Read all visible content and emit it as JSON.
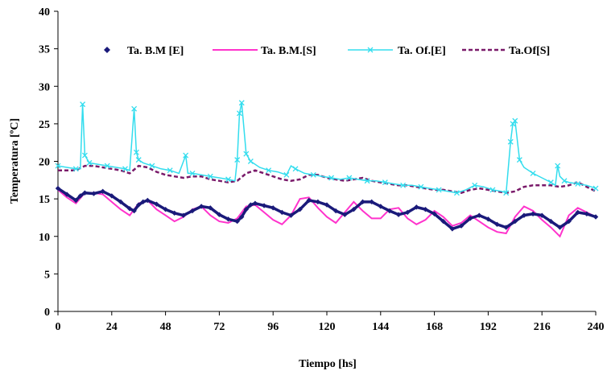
{
  "chart_data": {
    "type": "line",
    "title": "",
    "xlabel": "Tiempo [hs]",
    "ylabel": "Temperatura [ºC]",
    "xlim": [
      0,
      240
    ],
    "ylim": [
      0,
      40
    ],
    "xticks": [
      0,
      24,
      48,
      72,
      96,
      120,
      144,
      168,
      192,
      216,
      240
    ],
    "yticks": [
      0,
      5,
      10,
      15,
      20,
      25,
      30,
      35,
      40
    ],
    "grid": false,
    "legend_position": "top",
    "series": [
      {
        "name": "Ta. B.M [E]",
        "style": "diamond-markers",
        "color": "#1a1a7a",
        "x": [
          0,
          4,
          8,
          10,
          12,
          16,
          20,
          24,
          28,
          32,
          34,
          36,
          38,
          40,
          44,
          48,
          52,
          56,
          60,
          64,
          68,
          72,
          76,
          80,
          82,
          84,
          86,
          88,
          92,
          96,
          100,
          104,
          108,
          112,
          116,
          120,
          124,
          128,
          132,
          136,
          140,
          144,
          148,
          152,
          156,
          160,
          164,
          168,
          172,
          176,
          180,
          184,
          188,
          192,
          196,
          200,
          204,
          208,
          212,
          216,
          220,
          224,
          228,
          232,
          236,
          240
        ],
        "y": [
          16.4,
          15.6,
          14.8,
          15.4,
          15.8,
          15.7,
          16.0,
          15.4,
          14.6,
          13.7,
          13.4,
          14.2,
          14.6,
          14.8,
          14.3,
          13.6,
          13.1,
          12.8,
          13.4,
          14.0,
          13.8,
          12.9,
          12.3,
          12.0,
          12.6,
          13.6,
          14.2,
          14.4,
          14.1,
          13.8,
          13.2,
          12.8,
          13.6,
          14.8,
          14.6,
          14.2,
          13.4,
          12.9,
          13.6,
          14.6,
          14.6,
          14.0,
          13.4,
          12.9,
          13.2,
          13.9,
          13.6,
          13.0,
          12.0,
          11.0,
          11.4,
          12.4,
          12.8,
          12.3,
          11.6,
          11.2,
          12.0,
          12.8,
          13.0,
          12.8,
          12.0,
          11.2,
          12.0,
          13.2,
          13.0,
          12.6
        ]
      },
      {
        "name": "Ta. B.M.[S]",
        "style": "solid-line",
        "color": "#ff33cc",
        "x": [
          0,
          4,
          8,
          12,
          16,
          20,
          24,
          28,
          32,
          36,
          40,
          44,
          48,
          52,
          56,
          60,
          64,
          68,
          72,
          76,
          80,
          84,
          88,
          92,
          96,
          100,
          104,
          108,
          112,
          116,
          120,
          124,
          128,
          132,
          136,
          140,
          144,
          148,
          152,
          156,
          160,
          164,
          168,
          172,
          176,
          180,
          184,
          188,
          192,
          196,
          200,
          204,
          208,
          212,
          216,
          220,
          224,
          228,
          232,
          236,
          240
        ],
        "y": [
          16.2,
          15.2,
          14.4,
          15.8,
          15.8,
          15.6,
          14.6,
          13.6,
          12.8,
          14.4,
          14.8,
          13.6,
          12.8,
          12.0,
          12.6,
          13.6,
          14.0,
          12.8,
          12.0,
          11.8,
          12.4,
          14.0,
          14.2,
          13.2,
          12.2,
          11.6,
          12.8,
          15.0,
          15.2,
          13.8,
          12.6,
          11.8,
          13.2,
          14.6,
          13.4,
          12.4,
          12.4,
          13.6,
          13.8,
          12.4,
          11.6,
          12.2,
          13.4,
          12.6,
          11.4,
          11.8,
          12.8,
          12.0,
          11.2,
          10.6,
          10.4,
          12.6,
          14.0,
          13.4,
          12.2,
          11.2,
          10.0,
          12.8,
          13.8,
          13.2,
          12.6
        ]
      },
      {
        "name": "Ta. Of.[E]",
        "style": "line-x-markers",
        "color": "#33ddee",
        "x": [
          0,
          4,
          8,
          10,
          11,
          12,
          14,
          18,
          22,
          26,
          30,
          32,
          34,
          35,
          36,
          38,
          42,
          46,
          50,
          54,
          57,
          58,
          60,
          64,
          68,
          72,
          76,
          79,
          80,
          81,
          82,
          84,
          86,
          90,
          94,
          98,
          102,
          104,
          106,
          110,
          114,
          118,
          122,
          126,
          130,
          134,
          138,
          142,
          146,
          150,
          154,
          158,
          162,
          166,
          170,
          174,
          178,
          182,
          186,
          190,
          194,
          198,
          200,
          202,
          203,
          204,
          206,
          208,
          212,
          216,
          220,
          222,
          223,
          224,
          226,
          228,
          232,
          236,
          240
        ],
        "y": [
          19.4,
          19.2,
          19.0,
          19.0,
          27.6,
          20.8,
          19.8,
          19.6,
          19.4,
          19.2,
          19.0,
          18.8,
          27.0,
          21.2,
          20.2,
          19.8,
          19.4,
          19.0,
          18.8,
          18.4,
          20.8,
          18.4,
          18.4,
          18.2,
          18.0,
          17.8,
          17.6,
          17.4,
          20.2,
          26.4,
          27.8,
          21.0,
          20.0,
          19.2,
          18.8,
          18.6,
          18.2,
          19.4,
          19.0,
          18.4,
          18.2,
          18.0,
          17.8,
          17.6,
          17.8,
          17.6,
          17.4,
          17.4,
          17.2,
          17.0,
          16.8,
          16.8,
          16.6,
          16.4,
          16.2,
          16.0,
          15.8,
          16.2,
          16.8,
          16.6,
          16.2,
          16.0,
          15.8,
          22.6,
          25.0,
          25.4,
          20.2,
          19.2,
          18.4,
          17.8,
          17.2,
          16.8,
          19.4,
          18.0,
          17.4,
          17.2,
          17.0,
          16.8,
          16.4
        ]
      },
      {
        "name": "Ta.Of[S]",
        "style": "dashed-line",
        "color": "#7a1a6a",
        "x": [
          0,
          4,
          8,
          12,
          16,
          20,
          24,
          28,
          32,
          36,
          40,
          44,
          48,
          52,
          56,
          60,
          64,
          68,
          72,
          76,
          80,
          84,
          88,
          92,
          96,
          100,
          104,
          108,
          112,
          116,
          120,
          124,
          128,
          132,
          136,
          140,
          144,
          148,
          152,
          156,
          160,
          164,
          168,
          172,
          176,
          180,
          184,
          188,
          192,
          196,
          200,
          204,
          208,
          212,
          216,
          220,
          224,
          228,
          232,
          236,
          240
        ],
        "y": [
          18.8,
          18.8,
          18.8,
          19.4,
          19.4,
          19.2,
          19.0,
          18.8,
          18.4,
          19.4,
          19.2,
          18.6,
          18.2,
          18.0,
          17.8,
          18.0,
          18.0,
          17.6,
          17.4,
          17.2,
          17.4,
          18.4,
          18.8,
          18.4,
          18.0,
          17.6,
          17.4,
          17.6,
          18.2,
          18.2,
          17.8,
          17.6,
          17.4,
          17.6,
          17.8,
          17.4,
          17.2,
          17.0,
          16.8,
          16.8,
          16.6,
          16.4,
          16.2,
          16.2,
          16.0,
          15.8,
          16.2,
          16.4,
          16.2,
          16.0,
          15.8,
          16.0,
          16.6,
          16.8,
          16.8,
          16.8,
          16.6,
          16.8,
          17.2,
          16.6,
          16.0
        ]
      }
    ]
  }
}
